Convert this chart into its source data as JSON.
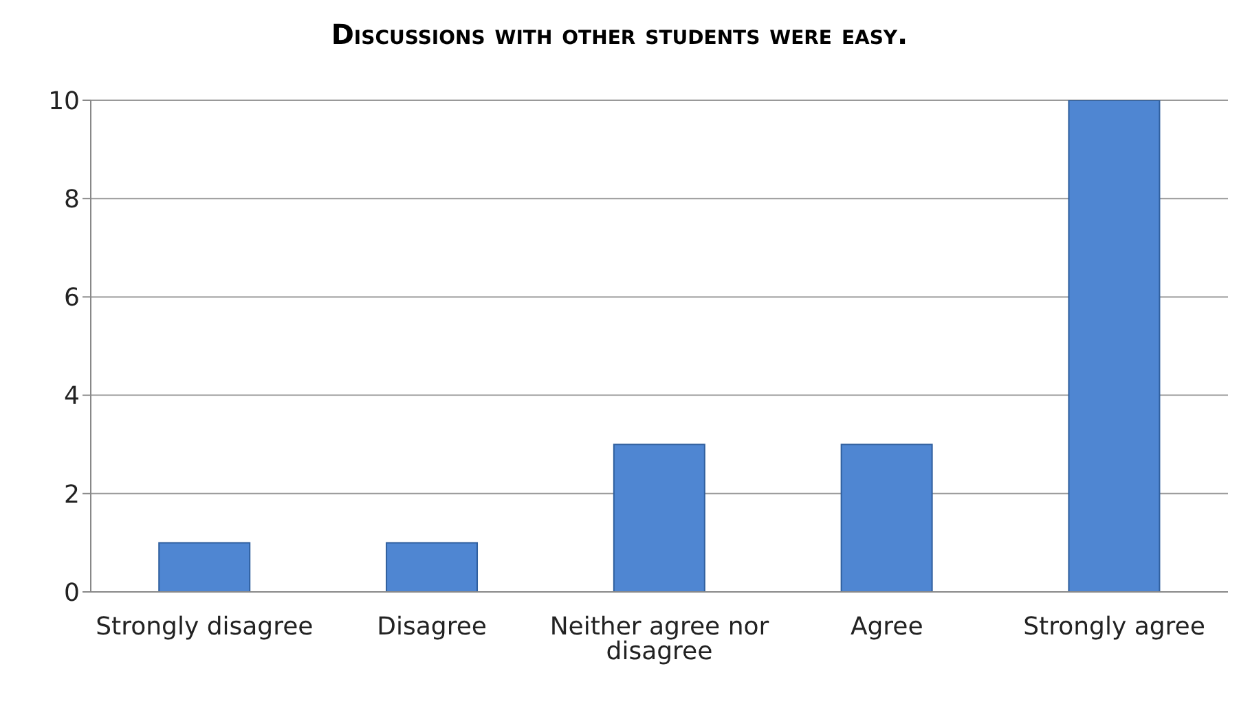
{
  "chart_data": {
    "type": "bar",
    "title": "Discussions with other students were easy.",
    "categories": [
      "Strongly disagree",
      "Disagree",
      "Neither agree nor disagree",
      "Agree",
      "Strongly agree"
    ],
    "values": [
      1,
      1,
      3,
      3,
      10
    ],
    "color": "#4f86d2",
    "ylim": [
      0,
      10
    ],
    "yticks": [
      0,
      2,
      4,
      6,
      8,
      10
    ],
    "grid": "y"
  }
}
